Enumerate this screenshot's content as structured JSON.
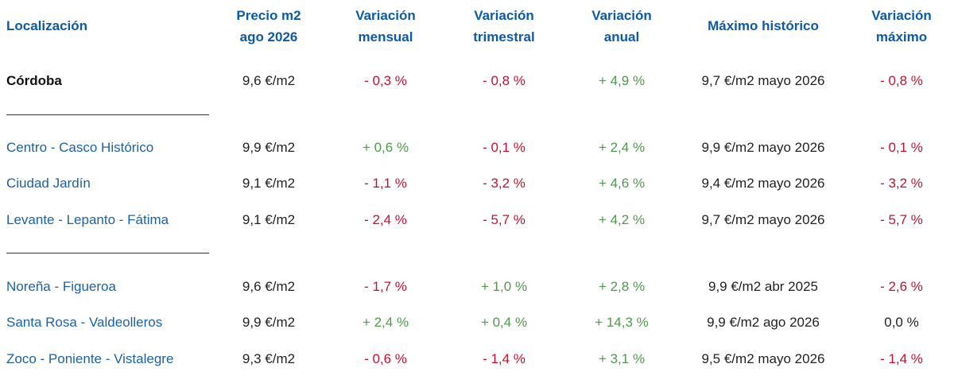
{
  "headers": {
    "location": "Localización",
    "price_line1": "Precio m2",
    "price_line2": "ago 2026",
    "monthly_line1": "Variación",
    "monthly_line2": "mensual",
    "quarterly_line1": "Variación",
    "quarterly_line2": "trimestral",
    "annual_line1": "Variación",
    "annual_line2": "anual",
    "historic_max": "Máximo histórico",
    "max_var_line1": "Variación",
    "max_var_line2": "máximo"
  },
  "rows": [
    {
      "location": "Córdoba",
      "price": "9,6 €/m2",
      "monthly": "- 0,3 %",
      "monthly_status": "neg",
      "quarterly": "- 0,8 %",
      "quarterly_status": "neg",
      "annual": "+ 4,9 %",
      "annual_status": "pos",
      "historic_max": "9,7 €/m2 mayo 2026",
      "max_var": "- 0,8 %",
      "max_var_status": "neg"
    },
    {
      "location": "Centro - Casco Histórico",
      "price": "9,9 €/m2",
      "monthly": "+ 0,6 %",
      "monthly_status": "pos",
      "quarterly": "- 0,1 %",
      "quarterly_status": "neg",
      "annual": "+ 2,4 %",
      "annual_status": "pos",
      "historic_max": "9,9 €/m2 mayo 2026",
      "max_var": "- 0,1 %",
      "max_var_status": "neg"
    },
    {
      "location": "Ciudad Jardín",
      "price": "9,1 €/m2",
      "monthly": "- 1,1 %",
      "monthly_status": "neg",
      "quarterly": "- 3,2 %",
      "quarterly_status": "neg",
      "annual": "+ 4,6 %",
      "annual_status": "pos",
      "historic_max": "9,4 €/m2 mayo 2026",
      "max_var": "- 3,2 %",
      "max_var_status": "neg"
    },
    {
      "location": "Levante - Lepanto - Fátima",
      "price": "9,1 €/m2",
      "monthly": "- 2,4 %",
      "monthly_status": "neg",
      "quarterly": "- 5,7 %",
      "quarterly_status": "neg",
      "annual": "+ 4,2 %",
      "annual_status": "pos",
      "historic_max": "9,7 €/m2 mayo 2026",
      "max_var": "- 5,7 %",
      "max_var_status": "neg"
    },
    {
      "location": "Noreña - Figueroa",
      "price": "9,6 €/m2",
      "monthly": "- 1,7 %",
      "monthly_status": "neg",
      "quarterly": "+ 1,0 %",
      "quarterly_status": "pos",
      "annual": "+ 2,8 %",
      "annual_status": "pos",
      "historic_max": "9,9 €/m2 abr 2025",
      "max_var": "- 2,6 %",
      "max_var_status": "neg"
    },
    {
      "location": "Santa Rosa - Valdeolleros",
      "price": "9,9 €/m2",
      "monthly": "+ 2,4 %",
      "monthly_status": "pos",
      "quarterly": "+ 0,4 %",
      "quarterly_status": "pos",
      "annual": "+ 14,3 %",
      "annual_status": "pos",
      "historic_max": "9,9 €/m2 ago 2026",
      "max_var": "0,0 %",
      "max_var_status": "neu"
    },
    {
      "location": "Zoco - Poniente - Vistalegre",
      "price": "9,3 €/m2",
      "monthly": "- 0,6 %",
      "monthly_status": "neg",
      "quarterly": "- 1,4 %",
      "quarterly_status": "neg",
      "annual": "+ 3,1 %",
      "annual_status": "pos",
      "historic_max": "9,5 €/m2 mayo 2026",
      "max_var": "- 1,4 %",
      "max_var_status": "neg"
    }
  ],
  "colors": {
    "header": "#0c5aa8",
    "location_link": "#1a62a8",
    "positive": "#4e9a4a",
    "negative": "#c8102e",
    "neutral": "#222222"
  }
}
